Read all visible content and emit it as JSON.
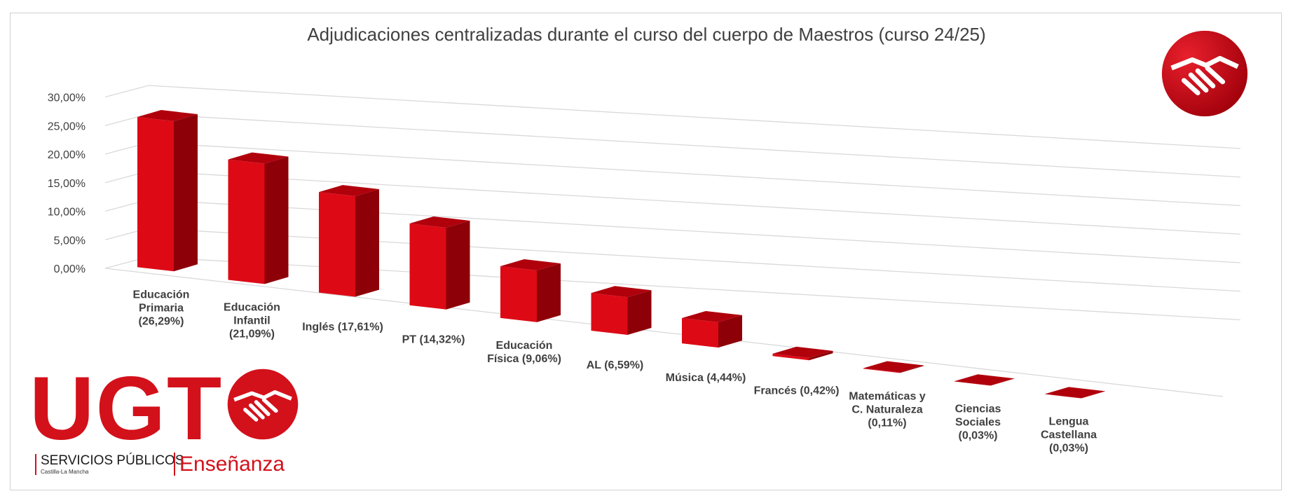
{
  "chart_data": {
    "type": "bar",
    "title": "Adjudicaciones centralizadas durante el curso del cuerpo de Maestros (curso 24/25)",
    "categories": [
      "Educación Primaria (26,29%)",
      "Educación Infantil (21,09%)",
      "Inglés (17,61%)",
      "PT (14,32%)",
      "Educación Física (9,06%)",
      "AL (6,59%)",
      "Música (4,44%)",
      "Francés (0,42%)",
      "Matemáticas y C. Naturaleza (0,11%)",
      "Ciencias Sociales (0,03%)",
      "Lengua Castellana (0,03%)"
    ],
    "category_lines": [
      [
        "Educación",
        "Primaria",
        "(26,29%)"
      ],
      [
        "Educación",
        "Infantil",
        "(21,09%)"
      ],
      [
        "Inglés (17,61%)"
      ],
      [
        "PT (14,32%)"
      ],
      [
        "Educación",
        "Física (9,06%)"
      ],
      [
        "AL (6,59%)"
      ],
      [
        "Música (4,44%)"
      ],
      [
        "Francés (0,42%)"
      ],
      [
        "Matemáticas y",
        "C. Naturaleza",
        "(0,11%)"
      ],
      [
        "Ciencias",
        "Sociales",
        "(0,03%)"
      ],
      [
        "Lengua",
        "Castellana",
        "(0,03%)"
      ]
    ],
    "values": [
      26.29,
      21.09,
      17.61,
      14.32,
      9.06,
      6.59,
      4.44,
      0.42,
      0.11,
      0.03,
      0.03
    ],
    "yticks": [
      "0,00%",
      "5,00%",
      "10,00%",
      "15,00%",
      "20,00%",
      "25,00%",
      "30,00%"
    ],
    "ylim": [
      0,
      30
    ],
    "grid": true,
    "style": "3d-column",
    "colors": {
      "front": "#dd0a16",
      "side": "#8e0008",
      "top": "#b0000c",
      "grid": "#d9d9d9"
    }
  },
  "branding": {
    "ugt": "UGT",
    "servicios": "SERVICIOS PÚBLICOS",
    "region": "Castilla-La Mancha",
    "ensenanza": "Enseñanza"
  }
}
